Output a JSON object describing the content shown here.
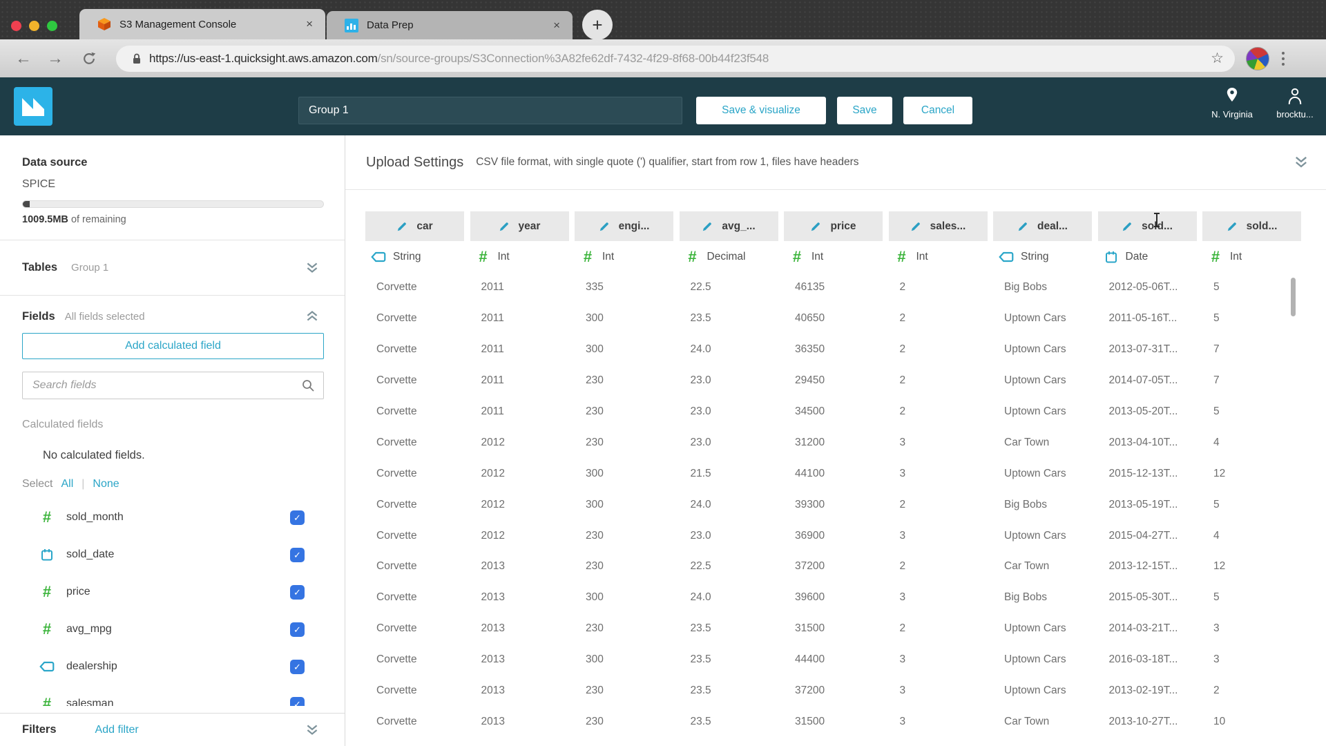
{
  "browser": {
    "tabs": [
      {
        "title": "S3 Management Console",
        "icon": "s3-cube"
      },
      {
        "title": "Data Prep",
        "icon": "quicksight-chart"
      }
    ],
    "url_domain": "https://us-east-1.quicksight.aws.amazon.com",
    "url_path": "/sn/source-groups/S3Connection%3A82fe62df-7432-4f29-8f68-00b44f23f548"
  },
  "header": {
    "dataset_name": "Group 1",
    "buttons": {
      "save_visualize": "Save & visualize",
      "save": "Save",
      "cancel": "Cancel"
    },
    "region_label": "N. Virginia",
    "user_label": "brocktu..."
  },
  "sidebar": {
    "data_source": {
      "title": "Data source",
      "engine": "SPICE",
      "capacity": "1009.5MB",
      "capacity_suffix": "of remaining"
    },
    "tables": {
      "title": "Tables",
      "value": "Group 1"
    },
    "fields": {
      "title": "Fields",
      "subtitle": "All fields selected",
      "add_button": "Add calculated field",
      "search_placeholder": "Search fields",
      "calculated_fields_label": "Calculated fields",
      "empty_text": "No calculated fields.",
      "select_label": "Select",
      "select_all": "All",
      "select_none": "None",
      "items": [
        {
          "name": "sold_month",
          "type": "int",
          "checked": true
        },
        {
          "name": "sold_date",
          "type": "date",
          "checked": true
        },
        {
          "name": "price",
          "type": "int",
          "checked": true
        },
        {
          "name": "avg_mpg",
          "type": "int",
          "checked": true
        },
        {
          "name": "dealership",
          "type": "string",
          "checked": true
        },
        {
          "name": "salesman",
          "type": "int",
          "checked": true
        }
      ]
    },
    "filters": {
      "title": "Filters",
      "add_filter": "Add filter"
    }
  },
  "main": {
    "upload_settings": {
      "title": "Upload Settings",
      "description": "CSV file format, with single quote (') qualifier, start from row 1, files have headers"
    },
    "table": {
      "columns": [
        {
          "label": "car",
          "type": "String",
          "type_icon": "string"
        },
        {
          "label": "year",
          "type": "Int",
          "type_icon": "int"
        },
        {
          "label": "engi...",
          "type": "Int",
          "type_icon": "int"
        },
        {
          "label": "avg_...",
          "type": "Decimal",
          "type_icon": "int"
        },
        {
          "label": "price",
          "type": "Int",
          "type_icon": "int"
        },
        {
          "label": "sales...",
          "type": "Int",
          "type_icon": "int"
        },
        {
          "label": "deal...",
          "type": "String",
          "type_icon": "string"
        },
        {
          "label": "sold...",
          "type": "Date",
          "type_icon": "date"
        },
        {
          "label": "sold...",
          "type": "Int",
          "type_icon": "int"
        }
      ],
      "rows": [
        [
          "Corvette",
          "2011",
          "335",
          "22.5",
          "46135",
          "2",
          "Big Bobs",
          "2012-05-06T...",
          "5"
        ],
        [
          "Corvette",
          "2011",
          "300",
          "23.5",
          "40650",
          "2",
          "Uptown Cars",
          "2011-05-16T...",
          "5"
        ],
        [
          "Corvette",
          "2011",
          "300",
          "24.0",
          "36350",
          "2",
          "Uptown Cars",
          "2013-07-31T...",
          "7"
        ],
        [
          "Corvette",
          "2011",
          "230",
          "23.0",
          "29450",
          "2",
          "Uptown Cars",
          "2014-07-05T...",
          "7"
        ],
        [
          "Corvette",
          "2011",
          "230",
          "23.0",
          "34500",
          "2",
          "Uptown Cars",
          "2013-05-20T...",
          "5"
        ],
        [
          "Corvette",
          "2012",
          "230",
          "23.0",
          "31200",
          "3",
          "Car Town",
          "2013-04-10T...",
          "4"
        ],
        [
          "Corvette",
          "2012",
          "300",
          "21.5",
          "44100",
          "3",
          "Uptown Cars",
          "2015-12-13T...",
          "12"
        ],
        [
          "Corvette",
          "2012",
          "300",
          "24.0",
          "39300",
          "2",
          "Big Bobs",
          "2013-05-19T...",
          "5"
        ],
        [
          "Corvette",
          "2012",
          "230",
          "23.0",
          "36900",
          "3",
          "Uptown Cars",
          "2015-04-27T...",
          "4"
        ],
        [
          "Corvette",
          "2013",
          "230",
          "22.5",
          "37200",
          "2",
          "Car Town",
          "2013-12-15T...",
          "12"
        ],
        [
          "Corvette",
          "2013",
          "300",
          "24.0",
          "39600",
          "3",
          "Big Bobs",
          "2015-05-30T...",
          "5"
        ],
        [
          "Corvette",
          "2013",
          "230",
          "23.5",
          "31500",
          "2",
          "Uptown Cars",
          "2014-03-21T...",
          "3"
        ],
        [
          "Corvette",
          "2013",
          "300",
          "23.5",
          "44400",
          "3",
          "Uptown Cars",
          "2016-03-18T...",
          "3"
        ],
        [
          "Corvette",
          "2013",
          "230",
          "23.5",
          "37200",
          "3",
          "Uptown Cars",
          "2013-02-19T...",
          "2"
        ],
        [
          "Corvette",
          "2013",
          "230",
          "23.5",
          "31500",
          "3",
          "Car Town",
          "2013-10-27T...",
          "10"
        ]
      ]
    }
  },
  "colors": {
    "accent_teal": "#2aa5c7",
    "header_bg": "#1e3d47",
    "logo_blue": "#2cb3e8",
    "int_green": "#3cb43c",
    "type_teal": "#2aa6c9",
    "checkbox_blue": "#3574e2"
  }
}
